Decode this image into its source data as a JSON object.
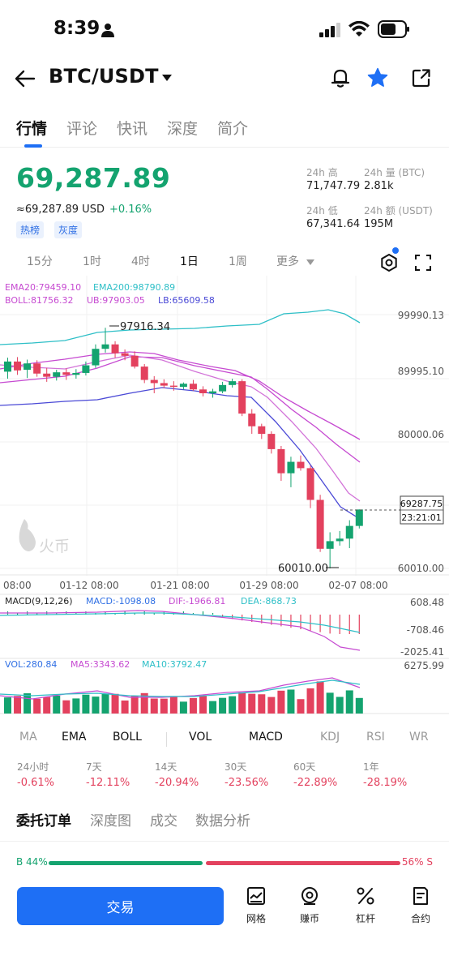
{
  "status_bar": {
    "time": "8:39"
  },
  "header": {
    "pair": "BTC/USDT"
  },
  "main_tabs": [
    "行情",
    "评论",
    "快讯",
    "深度",
    "简介"
  ],
  "price": {
    "last": "69,287.89",
    "usd_approx": "≈69,287.89 USD",
    "change": "+0.16%",
    "tags": [
      "热榜",
      "灰度"
    ]
  },
  "stats": {
    "high_label": "24h 高",
    "high": "71,747.79",
    "vol_btc_label": "24h 量 (BTC)",
    "vol_btc": "2.81k",
    "low_label": "24h 低",
    "low": "67,341.64",
    "vol_usdt_label": "24h 额 (USDT)",
    "vol_usdt": "195M"
  },
  "intervals": [
    "15分",
    "1时",
    "4时",
    "1日",
    "1周",
    "更多"
  ],
  "chart_legend": {
    "ema20": "EMA20:79459.10",
    "ema200": "EMA200:98790.89",
    "boll": "BOLL:81756.32",
    "ub": "UB:97903.05",
    "lb": "LB:65609.58",
    "macd_params": "MACD(9,12,26)",
    "macd": "MACD:-1098.08",
    "dif": "DIF:-1966.81",
    "dea": "DEA:-868.73",
    "vol": "VOL:280.84",
    "ma5": "MA5:3343.62",
    "ma10": "MA10:3792.47"
  },
  "chart_labels": {
    "y_ticks": [
      "99990.13",
      "89995.10",
      "80000.06",
      "60010.00"
    ],
    "x_ticks": [
      "08:00",
      "01-12 08:00",
      "01-21 08:00",
      "01-29 08:00",
      "02-07 08:00"
    ],
    "high_marker": "97916.34",
    "low_marker": "60010.00",
    "current_price": "69287.75",
    "countdown": "23:21:01",
    "macd_ticks": [
      "608.48",
      "-708.46",
      "-2025.41"
    ],
    "vol_top": "6275.99",
    "watermark": "火币"
  },
  "chart_data": {
    "type": "candlestick",
    "x_ticks": [
      "08:00",
      "01-12 08:00",
      "01-21 08:00",
      "01-29 08:00",
      "02-07 08:00"
    ],
    "y_range": [
      60010,
      99990.13
    ],
    "candles": [
      {
        "o": 91000,
        "h": 93200,
        "l": 89900,
        "c": 92600
      },
      {
        "o": 92600,
        "h": 93300,
        "l": 90500,
        "c": 91200
      },
      {
        "o": 91300,
        "h": 92900,
        "l": 90000,
        "c": 92300
      },
      {
        "o": 92300,
        "h": 92800,
        "l": 90200,
        "c": 90700
      },
      {
        "o": 90700,
        "h": 91600,
        "l": 89400,
        "c": 90200
      },
      {
        "o": 90200,
        "h": 91300,
        "l": 89600,
        "c": 90900
      },
      {
        "o": 90900,
        "h": 91500,
        "l": 89700,
        "c": 90500
      },
      {
        "o": 90500,
        "h": 91400,
        "l": 89900,
        "c": 90800
      },
      {
        "o": 90800,
        "h": 92600,
        "l": 90400,
        "c": 92000
      },
      {
        "o": 92000,
        "h": 95300,
        "l": 91600,
        "c": 94600
      },
      {
        "o": 94600,
        "h": 97916.34,
        "l": 94000,
        "c": 95300
      },
      {
        "o": 95300,
        "h": 95800,
        "l": 93200,
        "c": 93900
      },
      {
        "o": 93900,
        "h": 94500,
        "l": 92800,
        "c": 93500
      },
      {
        "o": 93500,
        "h": 94200,
        "l": 91500,
        "c": 91800
      },
      {
        "o": 91800,
        "h": 92200,
        "l": 89200,
        "c": 89700
      },
      {
        "o": 89700,
        "h": 90300,
        "l": 87600,
        "c": 89200
      },
      {
        "o": 89200,
        "h": 89800,
        "l": 88400,
        "c": 88800
      },
      {
        "o": 88800,
        "h": 89500,
        "l": 88000,
        "c": 88600
      },
      {
        "o": 88600,
        "h": 89300,
        "l": 88200,
        "c": 89100
      },
      {
        "o": 89100,
        "h": 89700,
        "l": 88000,
        "c": 88200
      },
      {
        "o": 88200,
        "h": 88700,
        "l": 87100,
        "c": 87600
      },
      {
        "o": 87600,
        "h": 88300,
        "l": 86900,
        "c": 87900
      },
      {
        "o": 87900,
        "h": 89400,
        "l": 87600,
        "c": 88900
      },
      {
        "o": 88900,
        "h": 89900,
        "l": 88500,
        "c": 89500
      },
      {
        "o": 89500,
        "h": 89800,
        "l": 84000,
        "c": 84400
      },
      {
        "o": 84400,
        "h": 85100,
        "l": 81200,
        "c": 82400
      },
      {
        "o": 82400,
        "h": 82800,
        "l": 80400,
        "c": 81200
      },
      {
        "o": 81200,
        "h": 81600,
        "l": 78100,
        "c": 78800
      },
      {
        "o": 78800,
        "h": 79300,
        "l": 73800,
        "c": 75000
      },
      {
        "o": 75000,
        "h": 77600,
        "l": 72800,
        "c": 76800
      },
      {
        "o": 76800,
        "h": 77800,
        "l": 75400,
        "c": 75800
      },
      {
        "o": 75800,
        "h": 76200,
        "l": 69500,
        "c": 70800
      },
      {
        "o": 70800,
        "h": 71600,
        "l": 62600,
        "c": 63100
      },
      {
        "o": 63100,
        "h": 65700,
        "l": 60010,
        "c": 64300
      },
      {
        "o": 64300,
        "h": 65900,
        "l": 63600,
        "c": 64700
      },
      {
        "o": 64700,
        "h": 67600,
        "l": 63200,
        "c": 66700
      },
      {
        "o": 66700,
        "h": 69300,
        "l": 66300,
        "c": 69287.89
      }
    ]
  },
  "indicator_tabs": [
    "MA",
    "EMA",
    "BOLL",
    "VOL",
    "MACD",
    "KDJ",
    "RSI",
    "WR"
  ],
  "period_changes": [
    {
      "label": "24小时",
      "value": "-0.61%"
    },
    {
      "label": "7天",
      "value": "-12.11%"
    },
    {
      "label": "14天",
      "value": "-20.94%"
    },
    {
      "label": "30天",
      "value": "-23.56%"
    },
    {
      "label": "60天",
      "value": "-22.89%"
    },
    {
      "label": "1年",
      "value": "-28.19%"
    }
  ],
  "order_tabs": [
    "委托订单",
    "深度图",
    "成交",
    "数据分析"
  ],
  "ratio": {
    "buy": "B 44%",
    "sell": "56% S",
    "buy_fraction": 0.44
  },
  "bottom": {
    "trade": "交易",
    "nav": [
      "网格",
      "赚币",
      "杠杆",
      "合约"
    ]
  },
  "colors": {
    "up": "#14a36f",
    "down": "#e3415e",
    "accent": "#1e6ff5"
  }
}
